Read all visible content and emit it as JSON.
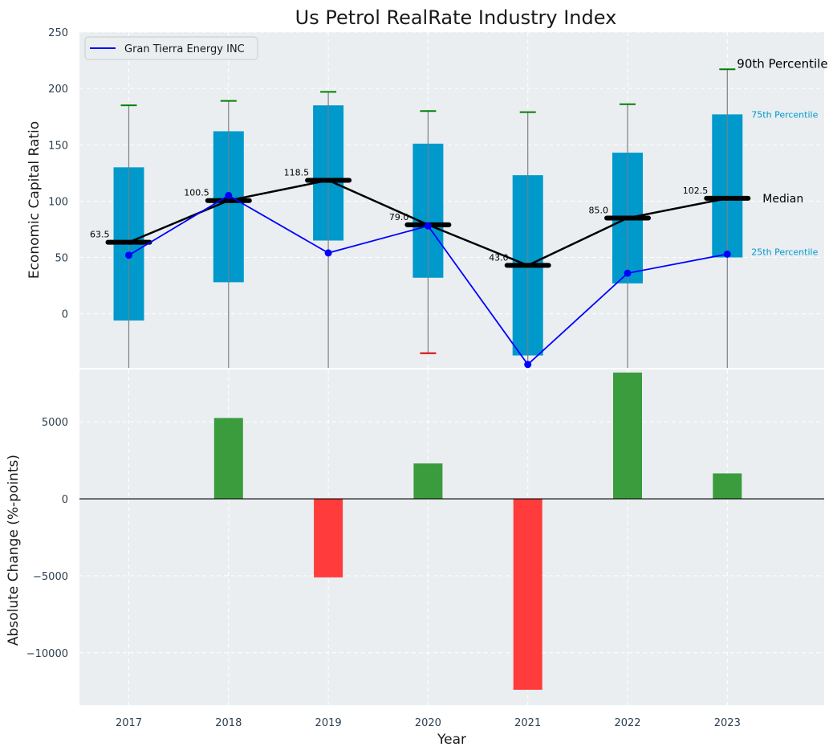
{
  "chart_data": [
    {
      "type": "box",
      "title": "Us Petrol RealRate Industry Index",
      "ylabel": "Economic Capital Ratio",
      "ylim": [
        -48,
        250
      ],
      "yticks": [
        0,
        50,
        100,
        150,
        200,
        250
      ],
      "categories": [
        "2017",
        "2018",
        "2019",
        "2020",
        "2021",
        "2022",
        "2023"
      ],
      "q1": [
        -6,
        28,
        65,
        32,
        -37,
        27,
        50
      ],
      "q3": [
        130,
        162,
        185,
        151,
        123,
        143,
        177
      ],
      "median": [
        63.5,
        100.5,
        118.5,
        79.0,
        43.0,
        85.0,
        102.5
      ],
      "whisker_low": [
        -48,
        -48,
        -48,
        -35,
        -48,
        -48,
        -48
      ],
      "whisker_high": [
        185,
        189,
        197,
        180,
        179,
        186,
        217
      ],
      "whisker_low_cap": [
        null,
        null,
        null,
        -35,
        null,
        null,
        null
      ],
      "median_labels": [
        "63.5",
        "100.5",
        "118.5",
        "79.0",
        "43.0",
        "85.0",
        "102.5"
      ],
      "series": [
        {
          "name": "Gran Tierra Energy INC",
          "values": [
            52,
            105,
            54,
            78,
            -45,
            36,
            53
          ]
        }
      ],
      "annotations": {
        "p90": "90th Percentile",
        "p75": "75th Percentile",
        "median": "Median",
        "p25": "25th Percentile"
      },
      "colors": {
        "box": "#0099cc",
        "whisker": "#808080",
        "cap_high": "#008000",
        "cap_low": "#dd0000",
        "median": "#000000",
        "series": "#0000ff",
        "annotation_blue": "#0099cc",
        "background": "#eaeef1"
      },
      "legend": "top-left",
      "grid": true
    },
    {
      "type": "bar",
      "xlabel": "Year",
      "ylabel": "Absolute Change (%-points)",
      "ylim": [
        -13400,
        8400
      ],
      "yticks": [
        -10000,
        -5000,
        0,
        5000
      ],
      "ytick_labels": [
        "−10000",
        "−5000",
        "0",
        "5000"
      ],
      "categories": [
        "2017",
        "2018",
        "2019",
        "2020",
        "2021",
        "2022",
        "2023"
      ],
      "values": [
        0,
        5250,
        -5100,
        2300,
        -12400,
        8200,
        1650
      ],
      "colors": {
        "positive": "#3a9c3c",
        "negative": "#ff3b3b",
        "background": "#eaeef1"
      },
      "grid": true
    }
  ]
}
